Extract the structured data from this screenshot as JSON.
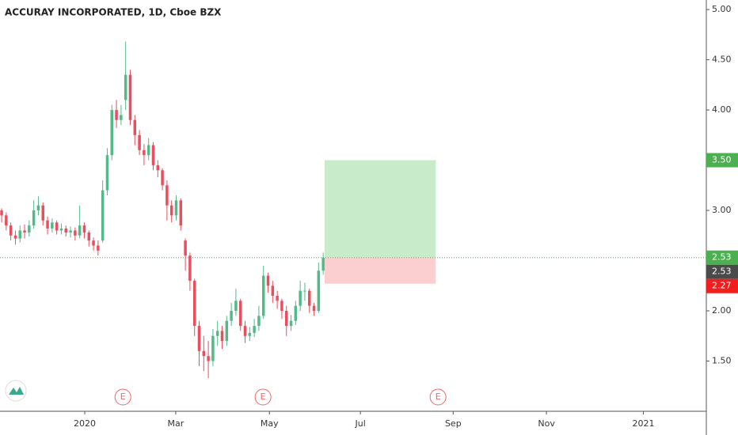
{
  "chart_data": {
    "type": "candlestick",
    "title": "ACCURAY INCORPORATED, 1D, Cboe BZX",
    "x": [
      0,
      1,
      2,
      3,
      4,
      5,
      6,
      7,
      8,
      9,
      10,
      11,
      12,
      13,
      14,
      15,
      16,
      17,
      18,
      19,
      20,
      21,
      22,
      23,
      24,
      25,
      26,
      27,
      28,
      29,
      30,
      31,
      32,
      33,
      34,
      35,
      36,
      37,
      38,
      39,
      40,
      41,
      42,
      43,
      44,
      45,
      46,
      47,
      48,
      49,
      50,
      51,
      52,
      53,
      54,
      55,
      56,
      57,
      58,
      59,
      60,
      61,
      62,
      63,
      64,
      65,
      66,
      67,
      68,
      69,
      70
    ],
    "open": [
      3.0,
      2.95,
      2.85,
      2.75,
      2.72,
      2.8,
      2.78,
      2.85,
      3.0,
      3.05,
      2.9,
      2.82,
      2.88,
      2.8,
      2.82,
      2.78,
      2.8,
      2.75,
      2.85,
      2.78,
      2.7,
      2.65,
      2.7,
      3.2,
      3.55,
      4.0,
      3.9,
      4.1,
      4.35,
      3.9,
      3.75,
      3.6,
      3.55,
      3.65,
      3.45,
      3.4,
      3.25,
      3.05,
      2.95,
      3.1,
      2.7,
      2.55,
      2.3,
      1.85,
      1.6,
      1.55,
      1.5,
      1.75,
      1.8,
      1.7,
      1.9,
      2.0,
      2.1,
      1.85,
      1.75,
      1.78,
      1.85,
      1.95,
      2.35,
      2.25,
      2.15,
      2.1,
      2.0,
      1.85,
      1.9,
      2.05,
      2.2,
      2.2,
      2.05,
      2.0,
      2.4
    ],
    "high": [
      3.02,
      2.98,
      2.88,
      2.8,
      2.85,
      2.86,
      2.9,
      3.1,
      3.14,
      3.08,
      2.94,
      2.92,
      2.9,
      2.87,
      2.85,
      2.84,
      2.83,
      3.05,
      2.88,
      2.8,
      2.73,
      2.7,
      3.3,
      3.62,
      4.05,
      4.1,
      4.05,
      4.68,
      4.4,
      3.95,
      3.8,
      3.66,
      3.72,
      3.68,
      3.5,
      3.42,
      3.3,
      3.1,
      3.15,
      3.12,
      2.72,
      2.58,
      2.32,
      1.9,
      1.75,
      1.7,
      1.82,
      1.9,
      1.85,
      1.95,
      2.08,
      2.22,
      2.12,
      1.9,
      1.84,
      1.92,
      2.05,
      2.45,
      2.38,
      2.3,
      2.2,
      2.12,
      2.05,
      1.96,
      2.1,
      2.3,
      2.28,
      2.22,
      2.08,
      2.48,
      2.58
    ],
    "low": [
      2.88,
      2.8,
      2.7,
      2.66,
      2.68,
      2.72,
      2.74,
      2.82,
      2.95,
      2.85,
      2.76,
      2.78,
      2.76,
      2.76,
      2.74,
      2.73,
      2.7,
      2.72,
      2.72,
      2.64,
      2.6,
      2.55,
      2.68,
      3.15,
      3.5,
      3.82,
      3.85,
      4.0,
      3.85,
      3.65,
      3.55,
      3.45,
      3.5,
      3.4,
      3.33,
      3.2,
      2.9,
      2.88,
      2.9,
      2.8,
      2.4,
      2.2,
      1.75,
      1.45,
      1.4,
      1.33,
      1.45,
      1.65,
      1.62,
      1.65,
      1.85,
      1.95,
      1.8,
      1.68,
      1.7,
      1.74,
      1.8,
      1.92,
      2.18,
      2.08,
      2.02,
      1.92,
      1.75,
      1.8,
      1.86,
      2.0,
      2.1,
      1.98,
      1.95,
      1.98,
      2.36
    ],
    "close": [
      2.95,
      2.85,
      2.75,
      2.72,
      2.8,
      2.78,
      2.85,
      3.0,
      3.05,
      2.9,
      2.82,
      2.88,
      2.8,
      2.82,
      2.78,
      2.8,
      2.75,
      2.85,
      2.78,
      2.7,
      2.65,
      2.6,
      3.2,
      3.55,
      4.0,
      3.9,
      3.95,
      4.35,
      3.9,
      3.75,
      3.6,
      3.55,
      3.65,
      3.45,
      3.4,
      3.25,
      3.05,
      2.95,
      3.1,
      2.85,
      2.55,
      2.3,
      1.85,
      1.6,
      1.55,
      1.5,
      1.75,
      1.8,
      1.7,
      1.9,
      2.0,
      2.1,
      1.85,
      1.75,
      1.78,
      1.85,
      1.95,
      2.35,
      2.25,
      2.15,
      2.1,
      2.0,
      1.85,
      1.9,
      2.05,
      2.2,
      2.2,
      2.05,
      2.0,
      2.4,
      2.53
    ],
    "up_color": "#53b987",
    "down_color": "#eb4d5c",
    "xlim": [
      -0.35,
      153.4
    ],
    "ylim": [
      1.0,
      5.095
    ],
    "xticks": [
      {
        "value": 18.1,
        "label": "2020"
      },
      {
        "value": 37.9,
        "label": "Mar"
      },
      {
        "value": 58.3,
        "label": "May"
      },
      {
        "value": 78.1,
        "label": "Jul"
      },
      {
        "value": 98.3,
        "label": "Sep"
      },
      {
        "value": 118.6,
        "label": "Nov"
      },
      {
        "value": 139.7,
        "label": "2021"
      }
    ],
    "yticks": [
      {
        "value": 1.5,
        "label": "1.50"
      },
      {
        "value": 2,
        "label": "2.00"
      },
      {
        "value": 2.5,
        "label": "2.50"
      },
      {
        "value": 3,
        "label": "3.00"
      },
      {
        "value": 3.5,
        "label": "3.50"
      },
      {
        "value": 4,
        "label": "4.00"
      },
      {
        "value": 4.5,
        "label": "4.50"
      },
      {
        "value": 5,
        "label": "5.00"
      }
    ],
    "position": {
      "start": 70.3,
      "end": 94.5,
      "entry": 2.53,
      "target": 3.5,
      "stop": 2.27,
      "profit_color": "#c8ecc9",
      "loss_color": "#fbcfd0",
      "line_color": "#4caf50"
    },
    "earnings": [
      {
        "x": 26.4,
        "label": "E"
      },
      {
        "x": 56.9,
        "label": "E"
      },
      {
        "x": 95.0,
        "label": "E"
      }
    ],
    "price_labels": [
      {
        "value": 3.5,
        "label": "3.50",
        "color": "#4caf50"
      },
      {
        "value": 2.53,
        "label": "2.53",
        "color": "#4caf50"
      },
      {
        "value": 2.53,
        "label": "2.53",
        "color": "#4a4a4a"
      },
      {
        "value": 2.27,
        "label": "2.27",
        "color": "#f21e1e"
      }
    ]
  }
}
